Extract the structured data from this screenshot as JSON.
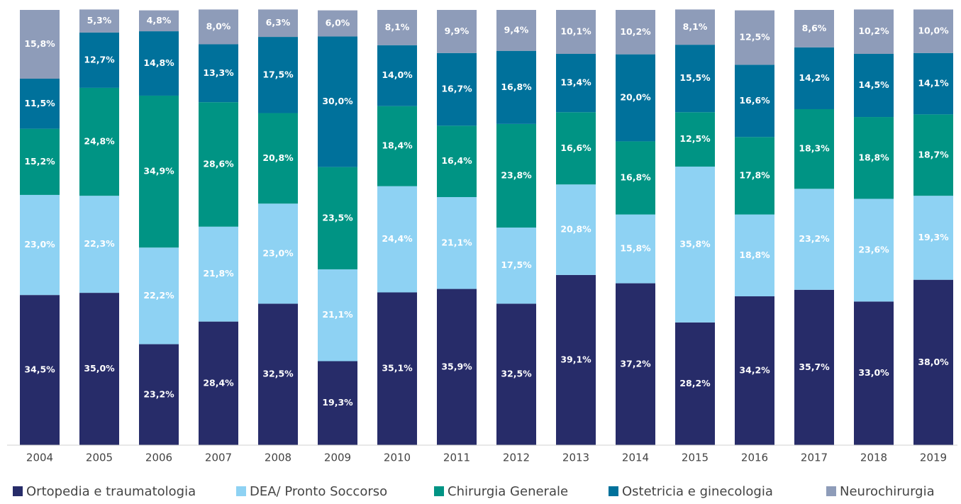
{
  "chart_data": {
    "type": "stacked_bar",
    "categories": [
      "2004",
      "2005",
      "2006",
      "2007",
      "2008",
      "2009",
      "2010",
      "2011",
      "2012",
      "2013",
      "2014",
      "2015",
      "2016",
      "2017",
      "2018",
      "2019"
    ],
    "ylim": [
      0,
      100
    ],
    "series": [
      {
        "name": "Ortopedia e traumatologia",
        "color": "#272c69",
        "values": [
          34.5,
          35.0,
          23.2,
          28.4,
          32.5,
          19.3,
          35.1,
          35.9,
          32.5,
          39.1,
          37.2,
          28.2,
          34.2,
          35.7,
          33.0,
          38.0
        ],
        "value_labels": [
          "34,5%",
          "35,0%",
          "23,2%",
          "28,4%",
          "32,5%",
          "19,3%",
          "35,1%",
          "35,9%",
          "32,5%",
          "39,1%",
          "37,2%",
          "28,2%",
          "34,2%",
          "35,7%",
          "33,0%",
          "38,0%"
        ]
      },
      {
        "name": "DEA/ Pronto Soccorso",
        "color": "#8ed2f3",
        "values": [
          23.0,
          22.3,
          22.2,
          21.8,
          23.0,
          21.1,
          24.4,
          21.1,
          17.5,
          20.8,
          15.8,
          35.8,
          18.8,
          23.2,
          23.6,
          19.3
        ],
        "value_labels": [
          "23,0%",
          "22,3%",
          "22,2%",
          "21,8%",
          "23,0%",
          "21,1%",
          "24,4%",
          "21,1%",
          "17,5%",
          "20,8%",
          "15,8%",
          "35,8%",
          "18,8%",
          "23,2%",
          "23,6%",
          "19,3%"
        ]
      },
      {
        "name": "Chirurgia Generale",
        "color": "#009484",
        "values": [
          15.2,
          24.8,
          34.9,
          28.6,
          20.8,
          23.5,
          18.4,
          16.4,
          23.8,
          16.6,
          16.8,
          12.5,
          17.8,
          18.3,
          18.8,
          18.7
        ],
        "value_labels": [
          "15,2%",
          "24,8%",
          "34,9%",
          "28,6%",
          "20,8%",
          "23,5%",
          "18,4%",
          "16,4%",
          "23,8%",
          "16,6%",
          "16,8%",
          "12,5%",
          "17,8%",
          "18,3%",
          "18,8%",
          "18,7%"
        ]
      },
      {
        "name": "Ostetricia e ginecologia",
        "color": "#00719b",
        "values": [
          11.5,
          12.7,
          14.8,
          13.3,
          17.5,
          30.0,
          14.0,
          16.7,
          16.8,
          13.4,
          20.0,
          15.5,
          16.6,
          14.2,
          14.5,
          14.1
        ],
        "value_labels": [
          "11,5%",
          "12,7%",
          "14,8%",
          "13,3%",
          "17,5%",
          "30,0%",
          "14,0%",
          "16,7%",
          "16,8%",
          "13,4%",
          "20,0%",
          "15,5%",
          "16,6%",
          "14,2%",
          "14,5%",
          "14,1%"
        ]
      },
      {
        "name": "Neurochirurgia",
        "color": "#8e9cb9",
        "values": [
          15.8,
          5.3,
          4.8,
          8.0,
          6.3,
          6.0,
          8.1,
          9.9,
          9.4,
          10.1,
          10.2,
          8.1,
          12.5,
          8.6,
          10.2,
          10.0
        ],
        "value_labels": [
          "15,8%",
          "5,3%",
          "4,8%",
          "8,0%",
          "6,3%",
          "6,0%",
          "8,1%",
          "9,9%",
          "9,4%",
          "10,1%",
          "10,2%",
          "8,1%",
          "12,5%",
          "8,6%",
          "10,2%",
          "10,0%"
        ]
      }
    ]
  }
}
